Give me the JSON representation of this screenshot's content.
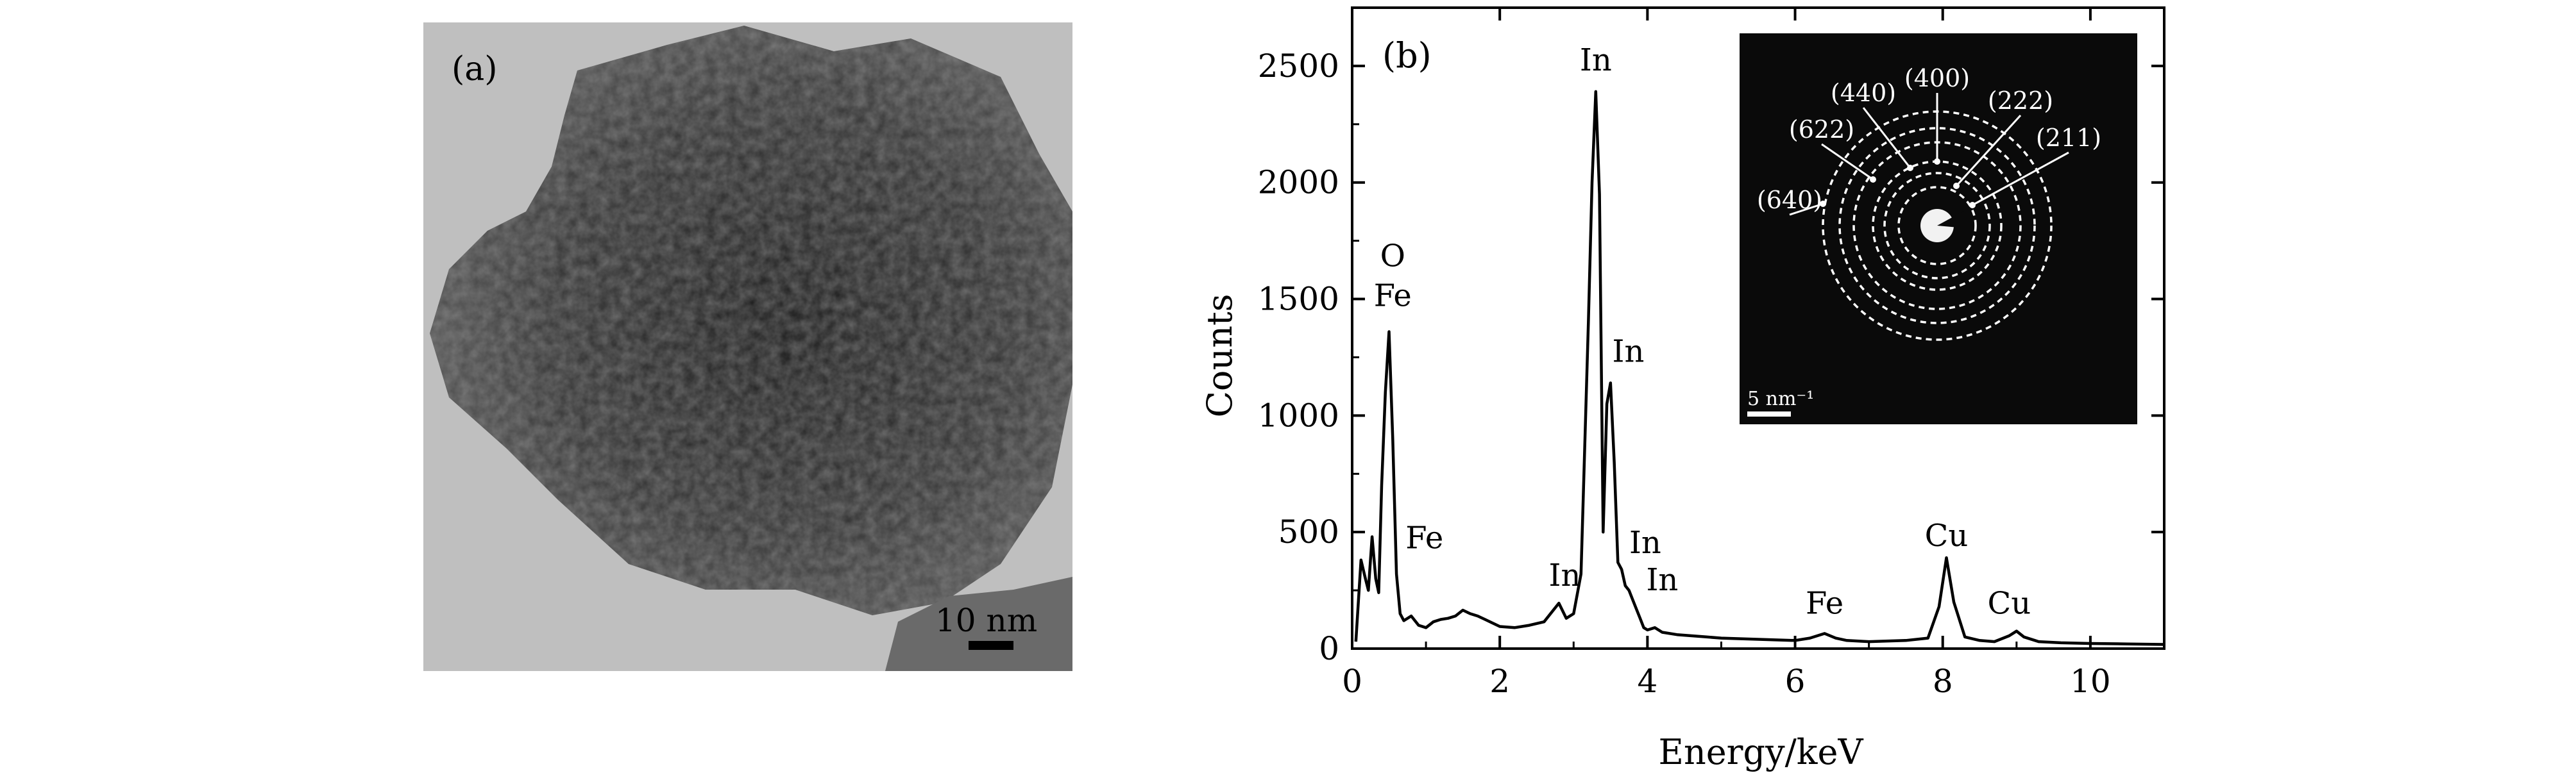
{
  "panel_a": {
    "label": "(a)",
    "scale_bar_label": "10 nm"
  },
  "chart_data": {
    "type": "line",
    "panel_label": "(b)",
    "xlabel": "Energy/keV",
    "ylabel": "Counts",
    "xlim": [
      0,
      11
    ],
    "ylim": [
      0,
      2750
    ],
    "xticks": [
      0,
      2,
      4,
      6,
      8,
      10
    ],
    "yticks": [
      0,
      500,
      1000,
      1500,
      2000,
      2500
    ],
    "grid": false,
    "series": [
      {
        "x": [
          0.05,
          0.12,
          0.18,
          0.22,
          0.27,
          0.32,
          0.36,
          0.4,
          0.45,
          0.5,
          0.55,
          0.6,
          0.65,
          0.7,
          0.8,
          0.9,
          1.0,
          1.1,
          1.2,
          1.3,
          1.4,
          1.5,
          1.6,
          1.7,
          1.8,
          1.9,
          2.0,
          2.2,
          2.4,
          2.6,
          2.8,
          2.9,
          3.0,
          3.1,
          3.2,
          3.25,
          3.3,
          3.35,
          3.4,
          3.45,
          3.5,
          3.55,
          3.6,
          3.65,
          3.7,
          3.75,
          3.8,
          3.85,
          3.9,
          3.95,
          4.0,
          4.1,
          4.2,
          4.4,
          4.6,
          4.8,
          5.0,
          5.5,
          6.0,
          6.2,
          6.4,
          6.55,
          6.7,
          7.0,
          7.5,
          7.8,
          7.95,
          8.05,
          8.15,
          8.3,
          8.5,
          8.7,
          8.9,
          9.0,
          9.1,
          9.3,
          9.6,
          10.0,
          10.5,
          11.0
        ],
        "y": [
          30,
          380,
          300,
          250,
          480,
          300,
          240,
          700,
          1100,
          1360,
          900,
          320,
          150,
          120,
          140,
          100,
          90,
          115,
          125,
          130,
          140,
          165,
          150,
          140,
          125,
          110,
          95,
          90,
          100,
          115,
          195,
          130,
          150,
          320,
          1400,
          2000,
          2390,
          1950,
          500,
          1050,
          1140,
          800,
          370,
          340,
          270,
          250,
          210,
          170,
          130,
          90,
          80,
          90,
          70,
          60,
          55,
          50,
          45,
          40,
          35,
          45,
          65,
          45,
          35,
          30,
          35,
          45,
          180,
          390,
          200,
          50,
          35,
          30,
          55,
          75,
          50,
          30,
          25,
          22,
          20,
          18
        ]
      }
    ],
    "annotations": [
      {
        "text": "O",
        "x": 0.55,
        "y": 1640
      },
      {
        "text": "Fe",
        "x": 0.55,
        "y": 1470
      },
      {
        "text": "Fe",
        "x": 0.98,
        "y": 430
      },
      {
        "text": "In",
        "x": 2.88,
        "y": 270
      },
      {
        "text": "In",
        "x": 3.3,
        "y": 2480
      },
      {
        "text": "In",
        "x": 3.74,
        "y": 1230
      },
      {
        "text": "In",
        "x": 3.97,
        "y": 410
      },
      {
        "text": "In",
        "x": 4.2,
        "y": 250
      },
      {
        "text": "Fe",
        "x": 6.4,
        "y": 150
      },
      {
        "text": "Cu",
        "x": 8.05,
        "y": 440
      },
      {
        "text": "Cu",
        "x": 8.9,
        "y": 150
      }
    ],
    "inset": {
      "rings": [
        {
          "label": "(211)"
        },
        {
          "label": "(222)"
        },
        {
          "label": "(400)"
        },
        {
          "label": "(440)"
        },
        {
          "label": "(622)"
        },
        {
          "label": "(640)"
        }
      ],
      "scale_bar_label": "5 nm⁻¹"
    }
  }
}
